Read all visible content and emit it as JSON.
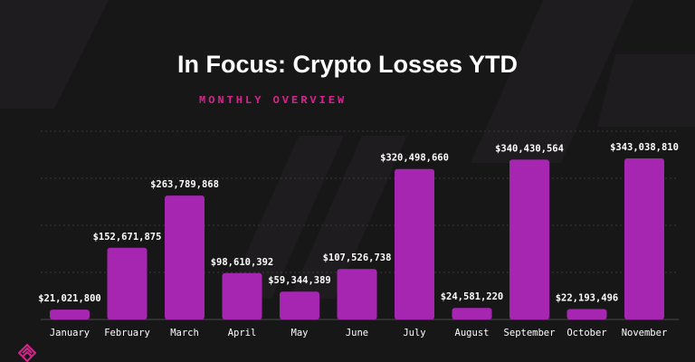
{
  "header": {
    "title": "In Focus: Crypto Losses YTD",
    "subtitle": "MONTHLY OVERVIEW"
  },
  "colors": {
    "background": "#181718",
    "bar": "#a626b2",
    "accent": "#d6248f",
    "grid": "#3a383a",
    "label": "#ffffff"
  },
  "logo": {
    "icon": "brand-logo-icon"
  },
  "chart_data": {
    "type": "bar",
    "title": "In Focus: Crypto Losses YTD",
    "subtitle": "MONTHLY OVERVIEW",
    "xlabel": "",
    "ylabel": "",
    "ylim": [
      0,
      400000000
    ],
    "grid": true,
    "legend": "none",
    "categories": [
      "January",
      "February",
      "March",
      "April",
      "May",
      "June",
      "July",
      "August",
      "September",
      "October",
      "November"
    ],
    "values": [
      21021800,
      152671875,
      263789868,
      98610392,
      59344389,
      107526738,
      320498660,
      24581220,
      340430564,
      22193496,
      343038810
    ],
    "value_labels": [
      "$21,021,800",
      "$152,671,875",
      "$263,789,868",
      "$98,610,392",
      "$59,344,389",
      "$107,526,738",
      "$320,498,660",
      "$24,581,220",
      "$340,430,564",
      "$22,193,496",
      "$343,038,810"
    ]
  }
}
